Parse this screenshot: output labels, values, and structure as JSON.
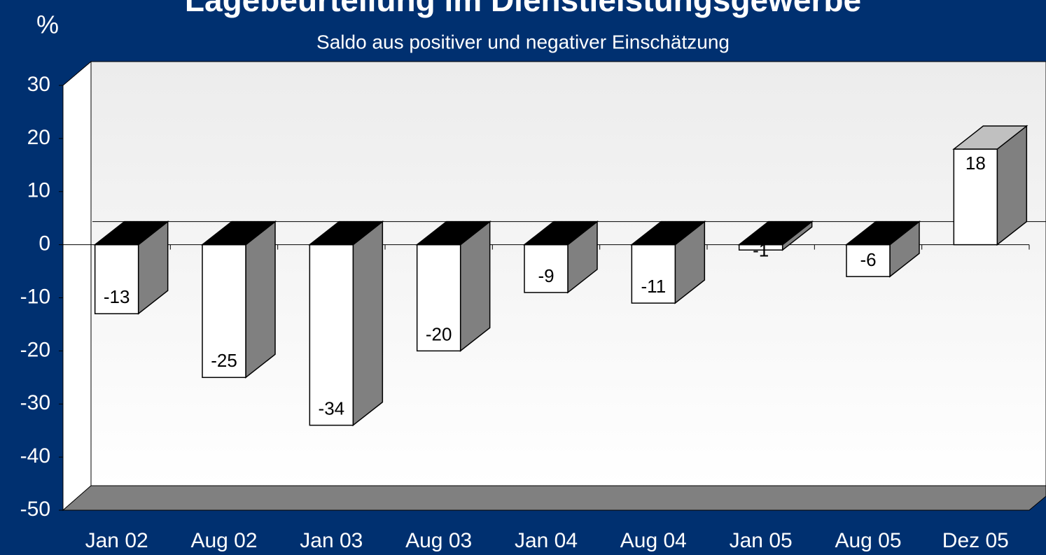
{
  "chart_data": {
    "type": "bar3d",
    "title": "Lagebeurteilung im Dienstleistungsgewerbe",
    "subtitle": "Saldo aus positiver und negativer Einschätzung",
    "y_label": "%",
    "categories": [
      "Jan 02",
      "Aug 02",
      "Jan 03",
      "Aug 03",
      "Jan 04",
      "Aug 04",
      "Jan 05",
      "Aug 05",
      "Dez 05"
    ],
    "values": [
      -13,
      -25,
      -34,
      -20,
      -9,
      -11,
      -1,
      -6,
      18
    ],
    "color": "#ffffff",
    "ylim": [
      -50,
      30
    ],
    "yticks": [
      -50,
      -40,
      -30,
      -20,
      -10,
      0,
      10,
      20,
      30
    ]
  }
}
